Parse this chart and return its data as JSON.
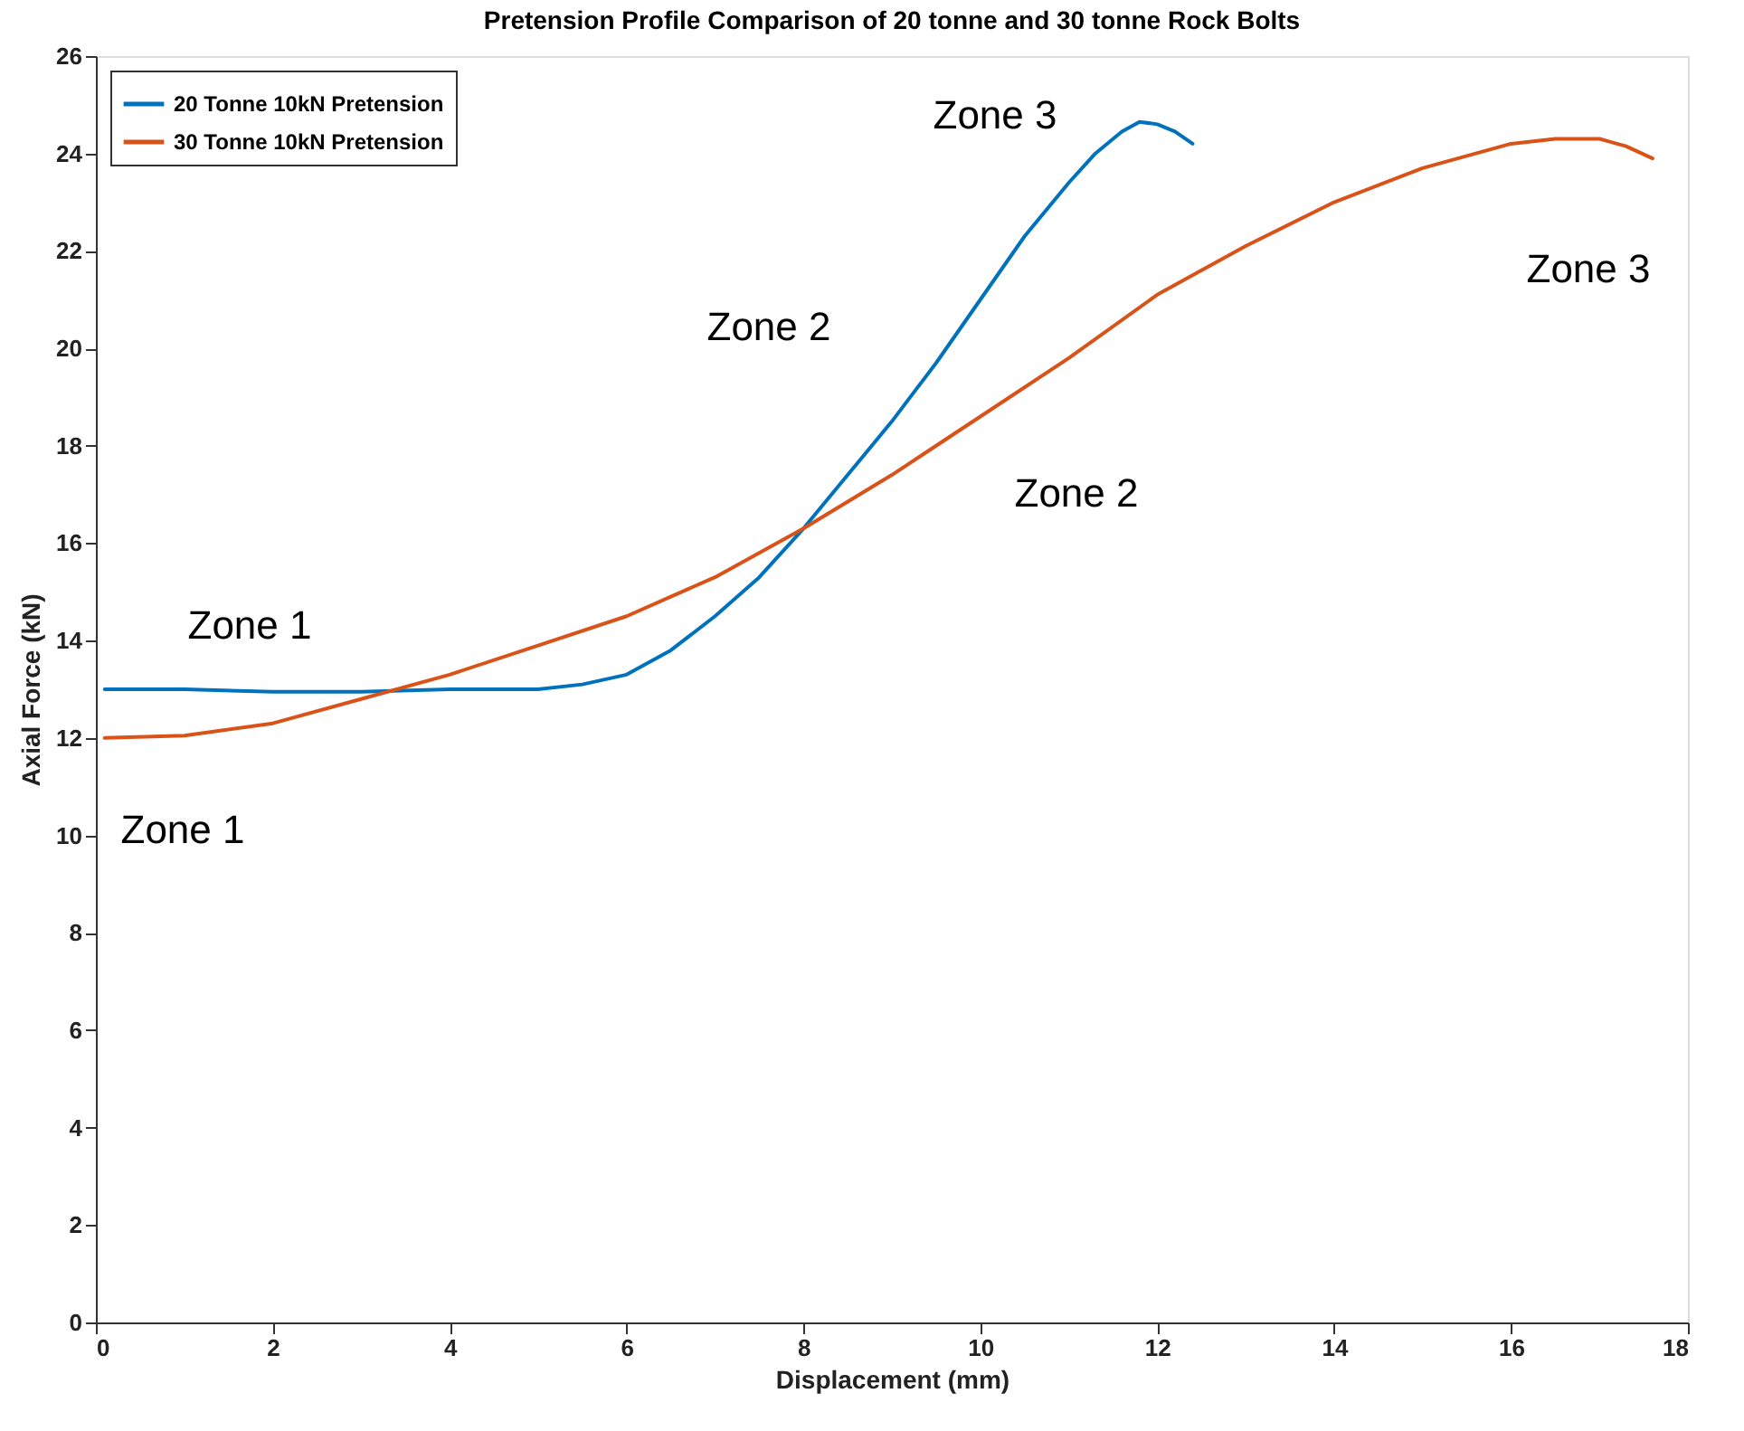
{
  "chart_data": {
    "type": "line",
    "title": "Pretension Profile Comparison of 20 tonne and 30 tonne Rock Bolts",
    "xlabel": "Displacement (mm)",
    "ylabel": "Axial Force (kN)",
    "xlim": [
      0,
      18
    ],
    "ylim": [
      0,
      26
    ],
    "xticks": [
      0,
      2,
      4,
      6,
      8,
      10,
      12,
      14,
      16,
      18
    ],
    "yticks": [
      0,
      2,
      4,
      6,
      8,
      10,
      12,
      14,
      16,
      18,
      20,
      22,
      24,
      26
    ],
    "grid": false,
    "legend": "top left",
    "marker": "none",
    "line_style": "solid",
    "series": [
      {
        "name": "20 Tonne 10kN Pretension",
        "color": "#0072bd",
        "x": [
          0.1,
          1,
          2,
          3,
          4,
          5,
          5.5,
          6,
          6.5,
          7,
          7.5,
          8,
          8.5,
          9,
          9.5,
          10,
          10.5,
          11,
          11.3,
          11.6,
          11.8,
          12,
          12.2,
          12.4
        ],
        "values": [
          13.0,
          13.0,
          12.95,
          12.95,
          13.0,
          13.0,
          13.1,
          13.3,
          13.8,
          14.5,
          15.3,
          16.3,
          17.4,
          18.5,
          19.7,
          21.0,
          22.3,
          23.4,
          24.0,
          24.45,
          24.65,
          24.6,
          24.45,
          24.2
        ]
      },
      {
        "name": "30 Tonne 10kN Pretension",
        "color": "#d95319",
        "x": [
          0.1,
          1,
          2,
          3,
          4,
          5,
          6,
          7,
          8,
          9,
          10,
          11,
          12,
          13,
          14,
          15,
          16,
          16.5,
          17,
          17.3,
          17.6
        ],
        "values": [
          12.0,
          12.05,
          12.3,
          12.8,
          13.3,
          13.9,
          14.5,
          15.3,
          16.3,
          17.4,
          18.6,
          19.8,
          21.1,
          22.1,
          23.0,
          23.7,
          24.2,
          24.3,
          24.3,
          24.15,
          23.9
        ]
      }
    ],
    "annotations": [
      "Zone 1",
      "Zone 1",
      "Zone 2",
      "Zone 2",
      "Zone 3",
      "Zone 3"
    ]
  }
}
